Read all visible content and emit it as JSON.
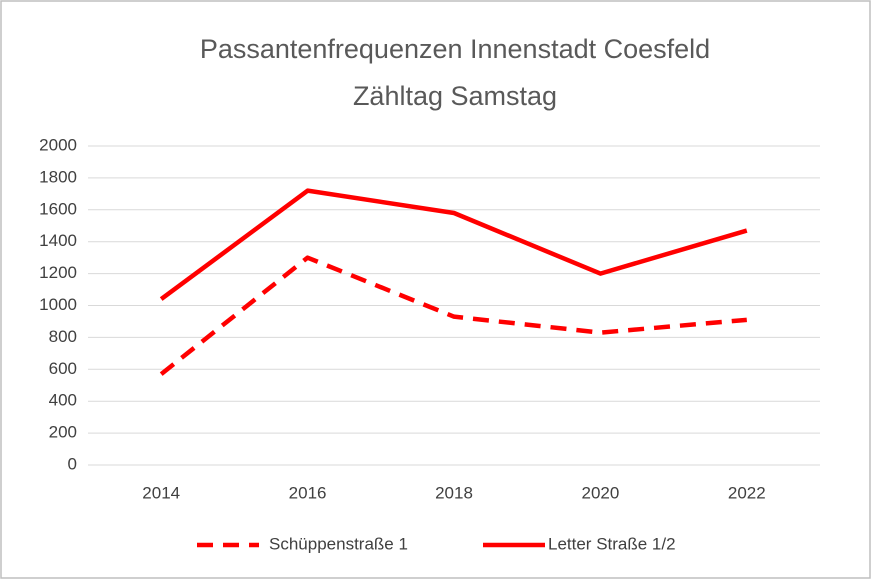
{
  "chart_data": {
    "type": "line",
    "title": [
      "Passantenfrequenzen Innenstadt Coesfeld",
      "Zähltag Samstag"
    ],
    "categories": [
      "2014",
      "2016",
      "2018",
      "2020",
      "2022"
    ],
    "series": [
      {
        "name": "Schüppenstraße 1",
        "color": "#ff0000",
        "style": "dashed",
        "values": [
          570,
          1300,
          930,
          830,
          910
        ]
      },
      {
        "name": "Letter Straße 1/2",
        "color": "#ff0000",
        "style": "solid",
        "values": [
          1040,
          1720,
          1580,
          1200,
          1470
        ]
      }
    ],
    "ylim": [
      0,
      2000
    ],
    "yticks": [
      0,
      200,
      400,
      600,
      800,
      1000,
      1200,
      1400,
      1600,
      1800,
      2000
    ],
    "grid": true,
    "legend": "bottom"
  }
}
